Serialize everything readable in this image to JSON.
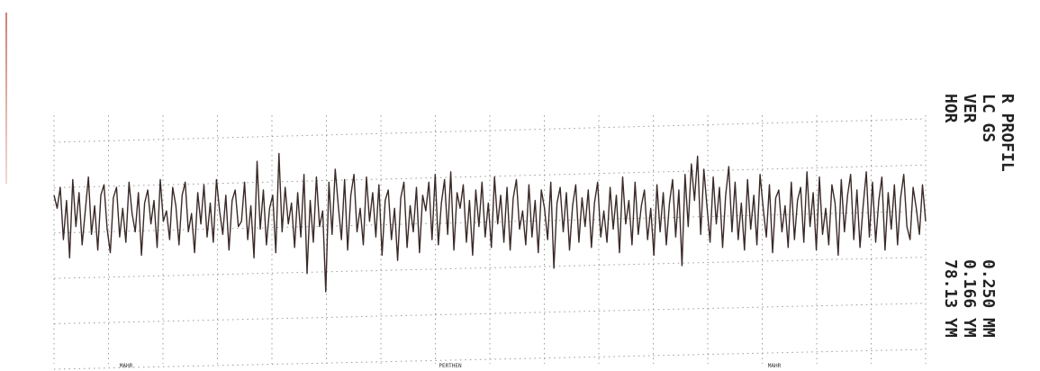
{
  "printout": {
    "title": "R PROFIL",
    "filter": "LC",
    "filter_value": "GS",
    "ver_label": "VER",
    "ver_value": "0.166",
    "ver_unit": "YM",
    "hor_label": "HOR",
    "hor_value": "78.13",
    "hor_unit": "YM",
    "cutoff_value": "0.250",
    "cutoff_unit": "MM",
    "brand_labels": [
      "MAHR",
      "PERTHEN",
      "MAHR"
    ]
  },
  "chart_data": {
    "type": "line",
    "title": "R PROFIL",
    "xlabel": "",
    "ylabel": "",
    "x_divisions": 16,
    "y_divisions": 5,
    "grid": true,
    "series": [
      {
        "values": [
          0.8,
          0.3,
          1.1,
          -0.9,
          0.6,
          -1.6,
          1.4,
          -0.4,
          0.9,
          -1.1,
          0.2,
          1.5,
          -0.7,
          0.4,
          -1.3,
          0.8,
          1.2,
          -0.5,
          -1.4,
          0.7,
          1.1,
          -0.8,
          0.3,
          -1.0,
          1.3,
          0.1,
          -0.6,
          0.9,
          -1.5,
          0.5,
          1.0,
          -0.3,
          0.6,
          -1.2,
          1.4,
          -0.2,
          0.2,
          -0.9,
          1.1,
          0.4,
          -1.1,
          0.8,
          1.3,
          -0.6,
          0.1,
          -1.4,
          0.9,
          -0.3,
          1.2,
          -0.8,
          0.5,
          -1.0,
          1.4,
          0.2,
          -0.7,
          0.8,
          -1.3,
          0.6,
          1.0,
          -0.4,
          -0.2,
          1.3,
          -0.9,
          0.4,
          -1.6,
          2.1,
          -0.5,
          1.0,
          -1.1,
          0.3,
          0.8,
          -1.4,
          2.4,
          -0.6,
          1.1,
          -0.3,
          0.5,
          -1.2,
          0.9,
          -0.8,
          1.6,
          -2.2,
          0.6,
          -1.0,
          1.5,
          -0.4,
          0.2,
          -2.9,
          1.3,
          -0.7,
          1.8,
          0.4,
          -0.9,
          1.4,
          -1.3,
          0.8,
          1.6,
          -0.6,
          0.3,
          -1.1,
          1.5,
          -0.2,
          0.9,
          -0.8,
          1.2,
          -1.5,
          0.6,
          1.0,
          -0.9,
          0.3,
          -1.7,
          0.7,
          1.3,
          -1.2,
          0.4,
          -0.6,
          1.1,
          -1.4,
          0.8,
          0.2,
          1.3,
          -0.9,
          1.6,
          -1.1,
          0.5,
          1.4,
          -0.7,
          1.7,
          -1.3,
          0.9,
          0.3,
          1.2,
          -1.0,
          0.6,
          -1.5,
          1.0,
          -0.4,
          1.3,
          -0.8,
          0.5,
          -1.2,
          1.5,
          -0.3,
          0.8,
          -1.0,
          1.1,
          -1.3,
          0.7,
          1.4,
          -0.5,
          0.2,
          -1.1,
          1.2,
          -0.8,
          0.6,
          -1.4,
          1.0,
          0.3,
          -0.9,
          1.3,
          -2.0,
          0.5,
          1.1,
          -0.6,
          0.9,
          -1.3,
          0.4,
          1.2,
          -1.0,
          0.7,
          -0.4,
          1.0,
          -1.2,
          0.5,
          1.3,
          -0.8,
          0.2,
          -1.0,
          1.1,
          -0.5,
          0.8,
          -1.4,
          1.5,
          -0.3,
          0.6,
          -1.1,
          1.3,
          -0.7,
          0.4,
          1.0,
          -0.9,
          0.3,
          -1.5,
          1.2,
          -0.6,
          0.9,
          -1.1,
          0.5,
          1.4,
          -0.8,
          1.0,
          -1.9,
          1.6,
          -0.4,
          2.0,
          0.6,
          2.3,
          -0.7,
          1.8,
          0.4,
          -1.0,
          1.5,
          -0.3,
          1.1,
          -1.2,
          0.8,
          1.9,
          -0.6,
          1.3,
          -0.9,
          0.5,
          -1.3,
          1.4,
          -0.5,
          0.8,
          -1.1,
          1.6,
          0.3,
          -0.8,
          1.2,
          -1.4,
          0.7,
          1.0,
          -0.6,
          0.4,
          -1.2,
          1.3,
          -0.9,
          0.6,
          1.1,
          -1.0,
          1.7,
          -0.4,
          0.9,
          -1.3,
          1.5,
          -0.7,
          0.3,
          -1.1,
          1.2,
          0.5,
          -1.5,
          1.4,
          -0.6,
          0.8,
          1.6,
          -0.9,
          1.0,
          -1.2,
          0.4,
          1.7,
          -0.8,
          1.3,
          -1.0,
          0.6,
          1.5,
          -1.3,
          0.9,
          -0.5,
          1.2,
          -1.1,
          0.7,
          1.6,
          -0.4,
          -0.9,
          1.1,
          0.3,
          -0.7,
          1.2,
          -0.2
        ]
      }
    ]
  }
}
